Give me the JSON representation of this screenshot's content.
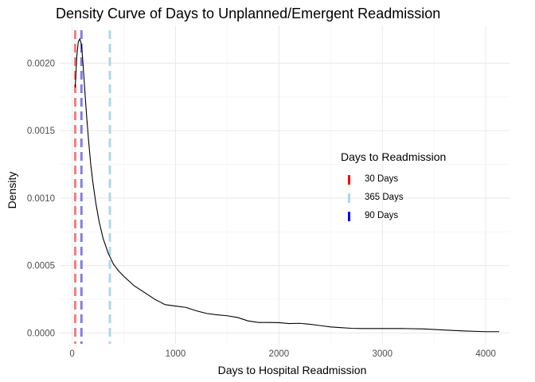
{
  "chart_data": {
    "type": "line",
    "title": "Density Curve of Days to Unplanned/Emergent Readmission",
    "xlabel": "Days to Hospital Readmission",
    "ylabel": "Density",
    "xlim": [
      -120,
      4230
    ],
    "ylim": [
      -8e-05,
      0.00228
    ],
    "x_ticks": [
      0,
      1000,
      2000,
      3000,
      4000
    ],
    "x_tick_labels": [
      "0",
      "1000",
      "2000",
      "3000",
      "4000"
    ],
    "y_ticks": [
      0,
      0.0005,
      0.001,
      0.0015,
      0.002
    ],
    "y_tick_labels": [
      "0.0000",
      "0.0005",
      "0.0010",
      "0.0015",
      "0.0020"
    ],
    "grid": true,
    "series": [
      {
        "color": "#000000",
        "x": [
          30,
          45,
          60,
          75,
          90,
          105,
          120,
          140,
          160,
          180,
          200,
          230,
          260,
          300,
          350,
          400,
          450,
          500,
          600,
          700,
          800,
          900,
          1000,
          1100,
          1200,
          1300,
          1400,
          1500,
          1600,
          1700,
          1800,
          1900,
          2000,
          2100,
          2200,
          2300,
          2400,
          2500,
          2600,
          2700,
          2800,
          3000,
          3200,
          3400,
          3600,
          3800,
          4000,
          4130
        ],
        "y": [
          0.00182,
          0.00205,
          0.00216,
          0.00218,
          0.00214,
          0.002,
          0.00183,
          0.00161,
          0.00142,
          0.00125,
          0.00112,
          0.00096,
          0.00083,
          0.0007,
          0.00059,
          0.00051,
          0.00046,
          0.00042,
          0.00035,
          0.0003,
          0.00025,
          0.00021,
          0.0002,
          0.00019,
          0.000165,
          0.000145,
          0.000135,
          0.000128,
          0.000115,
          9e-05,
          7.8e-05,
          7.8e-05,
          7.7e-05,
          7e-05,
          7.2e-05,
          6.5e-05,
          5.5e-05,
          4.5e-05,
          4e-05,
          3.5e-05,
          3.3e-05,
          3.3e-05,
          3.3e-05,
          3e-05,
          2.2e-05,
          1.5e-05,
          1e-05,
          1e-05
        ]
      }
    ],
    "vlines": [
      {
        "x": 30,
        "color": "#f08080",
        "label": "30 Days"
      },
      {
        "x": 90,
        "color": "#8080e8",
        "label": "90 Days"
      },
      {
        "x": 365,
        "color": "#add8e6",
        "label": "365 Days"
      }
    ],
    "legend": {
      "title": "Days to Readmission",
      "position": "right",
      "items": [
        {
          "label": "30 Days",
          "color": "#ff0000"
        },
        {
          "label": "365 Days",
          "color": "#add8e6"
        },
        {
          "label": "90 Days",
          "color": "#0000ff"
        }
      ]
    }
  }
}
